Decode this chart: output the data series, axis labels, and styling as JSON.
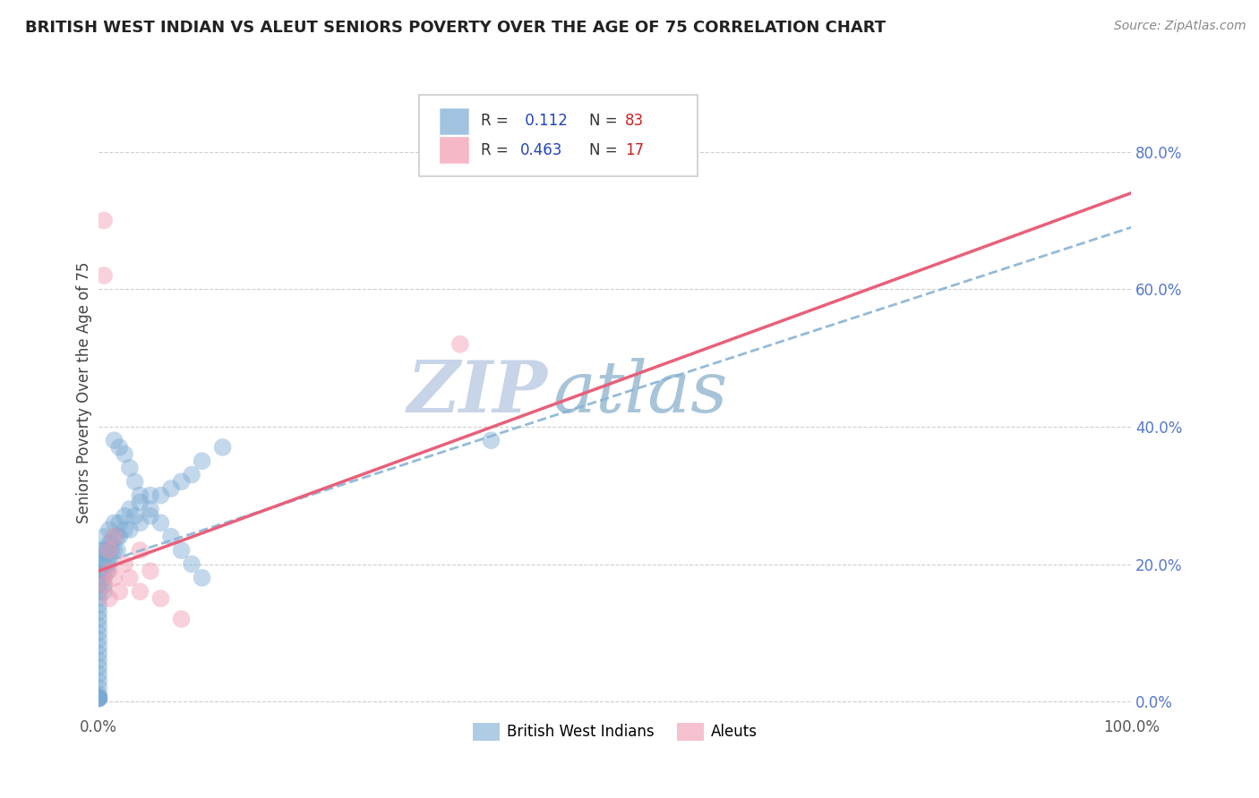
{
  "title": "BRITISH WEST INDIAN VS ALEUT SENIORS POVERTY OVER THE AGE OF 75 CORRELATION CHART",
  "source": "Source: ZipAtlas.com",
  "ylabel": "Seniors Poverty Over the Age of 75",
  "xlim": [
    0,
    1.0
  ],
  "ylim": [
    -0.02,
    0.92
  ],
  "x_ticks": [
    0.0,
    0.5,
    1.0
  ],
  "x_tick_labels": [
    "0.0%",
    "",
    "100.0%"
  ],
  "y_ticks": [
    0.0,
    0.2,
    0.4,
    0.6,
    0.8
  ],
  "y_tick_labels": [
    "0.0%",
    "20.0%",
    "40.0%",
    "60.0%",
    "80.0%"
  ],
  "grid_color": "#bbbbbb",
  "background_color": "#ffffff",
  "watermark_zip": "ZIP",
  "watermark_atlas": "atlas",
  "watermark_color_zip": "#c8d4e8",
  "watermark_color_atlas": "#a8c4d8",
  "legend_line1": "R =  0.112   N = 83",
  "legend_line2": "R = 0.463   N = 17",
  "blue_color": "#7aaad4",
  "pink_color": "#f09ab0",
  "blue_line_color": "#89b4d4",
  "pink_line_color": "#e8607a",
  "dot_size": 200,
  "dot_alpha": 0.45,
  "blue_regression_y0": 0.2,
  "blue_regression_y1": 0.69,
  "pink_regression_y0": 0.19,
  "pink_regression_y1": 0.74,
  "pink_scatter_x": [
    0.005,
    0.005,
    0.01,
    0.01,
    0.015,
    0.015,
    0.02,
    0.025,
    0.03,
    0.04,
    0.04,
    0.05,
    0.06,
    0.08,
    0.35,
    0.005,
    0.01
  ],
  "pink_scatter_y": [
    0.7,
    0.62,
    0.22,
    0.19,
    0.24,
    0.18,
    0.16,
    0.2,
    0.18,
    0.16,
    0.22,
    0.19,
    0.15,
    0.12,
    0.52,
    0.17,
    0.15
  ],
  "blue_scatter_x_tight": [
    0.0,
    0.0,
    0.0,
    0.0,
    0.0,
    0.0,
    0.0,
    0.0,
    0.0,
    0.0,
    0.0,
    0.0,
    0.0,
    0.0,
    0.0,
    0.0,
    0.0,
    0.0,
    0.0,
    0.0,
    0.0,
    0.0,
    0.0,
    0.0,
    0.0,
    0.0,
    0.0,
    0.0,
    0.0,
    0.0,
    0.005,
    0.005,
    0.005,
    0.005,
    0.005,
    0.005,
    0.005,
    0.005,
    0.008,
    0.008,
    0.008,
    0.01,
    0.01,
    0.01,
    0.01,
    0.01,
    0.012,
    0.012,
    0.015,
    0.015,
    0.015,
    0.018,
    0.018,
    0.02,
    0.02,
    0.025,
    0.025,
    0.03,
    0.03,
    0.035,
    0.04,
    0.04,
    0.05,
    0.05,
    0.06,
    0.07,
    0.08,
    0.09,
    0.1,
    0.12,
    0.015,
    0.02,
    0.025,
    0.03,
    0.035,
    0.04,
    0.05,
    0.06,
    0.07,
    0.08,
    0.09,
    0.1,
    0.38
  ],
  "blue_scatter_y_tight": [
    0.22,
    0.2,
    0.19,
    0.18,
    0.17,
    0.16,
    0.15,
    0.14,
    0.13,
    0.12,
    0.11,
    0.1,
    0.09,
    0.08,
    0.07,
    0.06,
    0.05,
    0.04,
    0.03,
    0.02,
    0.01,
    0.005,
    0.005,
    0.005,
    0.005,
    0.005,
    0.005,
    0.005,
    0.005,
    0.005,
    0.24,
    0.22,
    0.21,
    0.2,
    0.19,
    0.18,
    0.17,
    0.16,
    0.22,
    0.2,
    0.19,
    0.25,
    0.23,
    0.22,
    0.21,
    0.2,
    0.23,
    0.22,
    0.26,
    0.24,
    0.22,
    0.24,
    0.22,
    0.26,
    0.24,
    0.27,
    0.25,
    0.28,
    0.25,
    0.27,
    0.29,
    0.26,
    0.3,
    0.27,
    0.3,
    0.31,
    0.32,
    0.33,
    0.35,
    0.37,
    0.38,
    0.37,
    0.36,
    0.34,
    0.32,
    0.3,
    0.28,
    0.26,
    0.24,
    0.22,
    0.2,
    0.18,
    0.38
  ]
}
